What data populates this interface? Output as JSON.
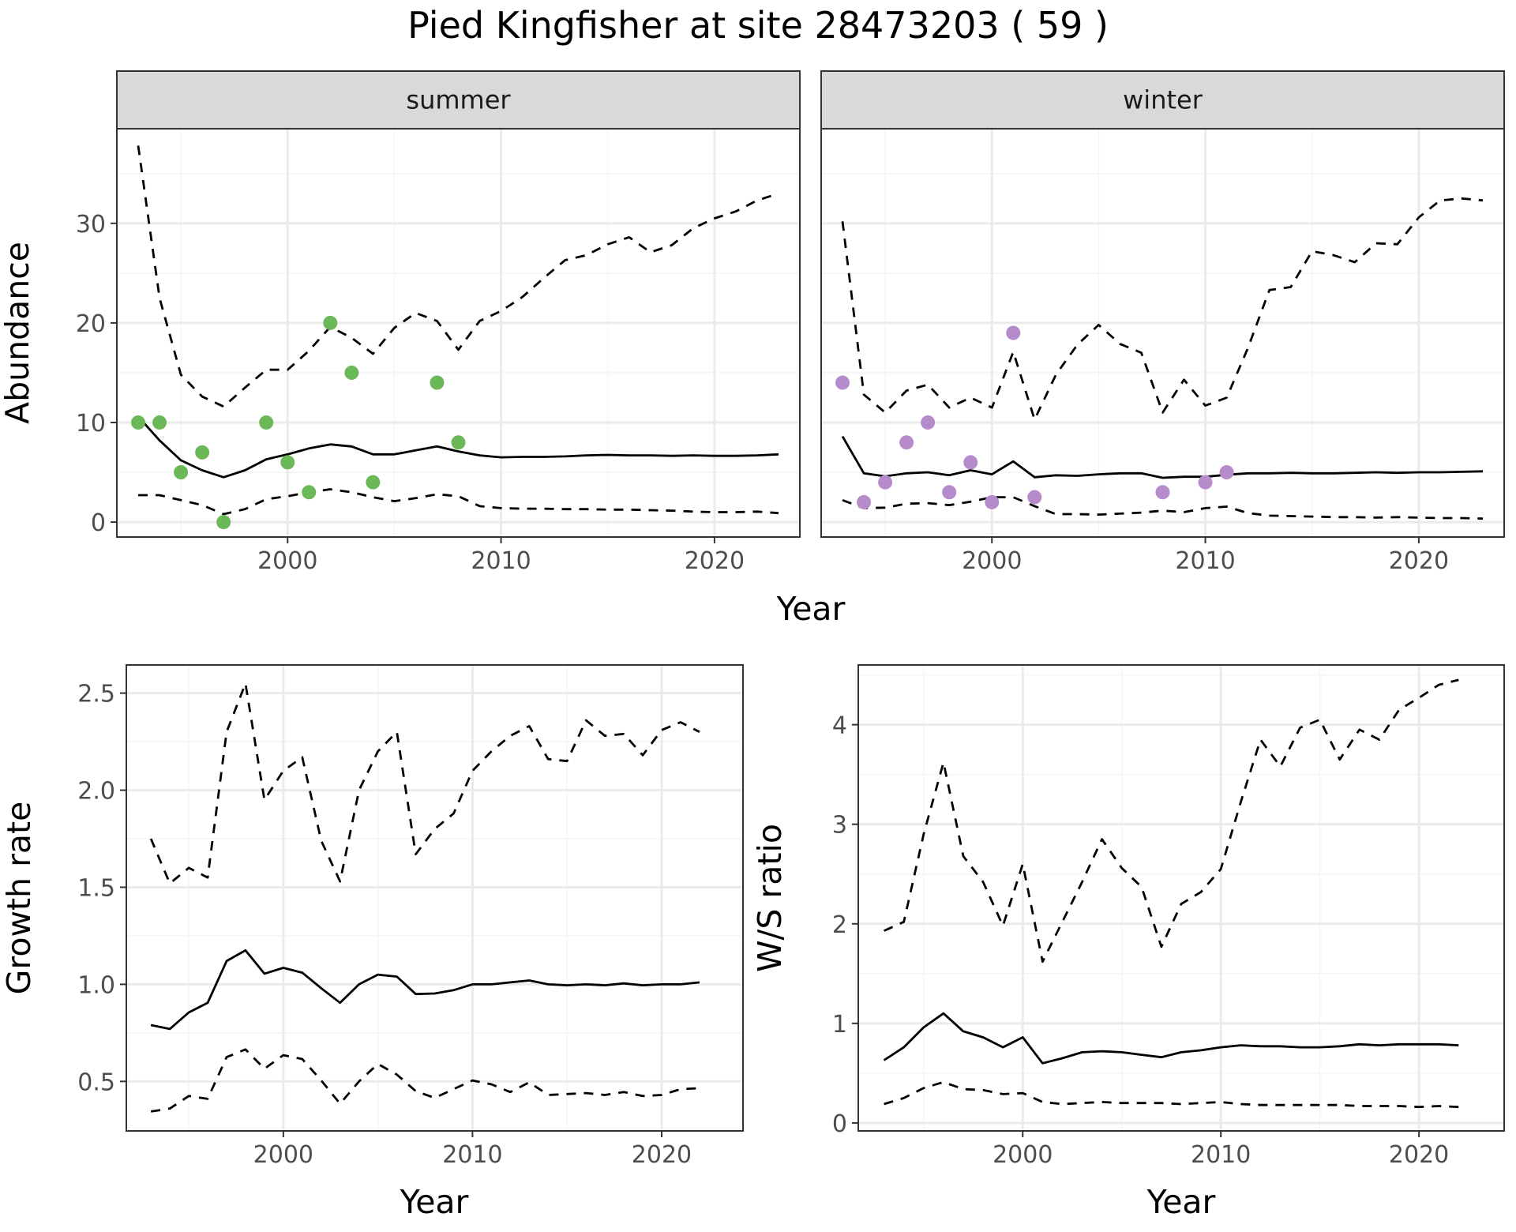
{
  "title": "Pied Kingfisher at site 28473203 ( 59 )",
  "colors": {
    "summer_points": "#6ab858",
    "winter_points": "#b68bcc",
    "line": "#000000",
    "strip_bg": "#d9d9d9",
    "grid_major": "#ebebeb",
    "grid_minor": "#f5f5f5"
  },
  "chart_data": [
    {
      "type": "line",
      "panel": "summer",
      "strip_label": "summer",
      "xlabel": "Year",
      "ylabel": "Abundance",
      "xlim": [
        1992,
        2024
      ],
      "ylim": [
        -1.5,
        39.5
      ],
      "x_ticks": [
        2000,
        2010,
        2020
      ],
      "y_ticks": [
        0,
        10,
        20,
        30
      ],
      "grid": true,
      "points": {
        "x": [
          1993,
          1994,
          1995,
          1996,
          1997,
          1999,
          2000,
          2001,
          2002,
          2003,
          2004,
          2007,
          2008
        ],
        "y": [
          10,
          10,
          5,
          7,
          0,
          10,
          6,
          3,
          20,
          15,
          4,
          14,
          8
        ]
      },
      "series": [
        {
          "style": "solid",
          "x": [
            1993,
            1994,
            1995,
            1996,
            1997,
            1998,
            1999,
            2000,
            2001,
            2002,
            2003,
            2004,
            2005,
            2006,
            2007,
            2008,
            2009,
            2010,
            2011,
            2012,
            2013,
            2014,
            2015,
            2016,
            2017,
            2018,
            2019,
            2020,
            2021,
            2022,
            2023
          ],
          "y": [
            10.6,
            8.2,
            6.2,
            5.2,
            4.5,
            5.2,
            6.3,
            6.8,
            7.4,
            7.8,
            7.6,
            6.8,
            6.8,
            7.2,
            7.6,
            7.1,
            6.7,
            6.5,
            6.55,
            6.55,
            6.6,
            6.7,
            6.75,
            6.7,
            6.7,
            6.65,
            6.7,
            6.65,
            6.65,
            6.7,
            6.8
          ]
        },
        {
          "style": "dashed",
          "x": [
            1993,
            1994,
            1995,
            1996,
            1997,
            1998,
            1999,
            2000,
            2001,
            2002,
            2003,
            2004,
            2005,
            2006,
            2007,
            2008,
            2009,
            2010,
            2011,
            2012,
            2013,
            2014,
            2015,
            2016,
            2017,
            2018,
            2019,
            2020,
            2021,
            2022,
            2023
          ],
          "y": [
            37.8,
            22.5,
            14.8,
            12.6,
            11.6,
            13.5,
            15.3,
            15.3,
            17.2,
            19.6,
            18.5,
            16.9,
            19.5,
            21.0,
            20.2,
            17.3,
            20.2,
            21.2,
            22.6,
            24.5,
            26.3,
            26.8,
            27.9,
            28.6,
            27.1,
            27.8,
            29.5,
            30.5,
            31.2,
            32.3,
            33.0
          ]
        },
        {
          "style": "dashed",
          "x": [
            1993,
            1994,
            1995,
            1996,
            1997,
            1998,
            1999,
            2000,
            2001,
            2002,
            2003,
            2004,
            2005,
            2006,
            2007,
            2008,
            2009,
            2010,
            2011,
            2012,
            2013,
            2014,
            2015,
            2016,
            2017,
            2018,
            2019,
            2020,
            2021,
            2022,
            2023
          ],
          "y": [
            2.7,
            2.7,
            2.2,
            1.7,
            0.8,
            1.3,
            2.3,
            2.6,
            3.0,
            3.3,
            3.0,
            2.5,
            2.1,
            2.4,
            2.8,
            2.6,
            1.6,
            1.4,
            1.35,
            1.35,
            1.3,
            1.3,
            1.25,
            1.25,
            1.2,
            1.15,
            1.05,
            1.0,
            1.0,
            1.05,
            0.9
          ]
        }
      ]
    },
    {
      "type": "line",
      "panel": "winter",
      "strip_label": "winter",
      "xlabel": "Year",
      "ylabel": "",
      "xlim": [
        1992,
        2024
      ],
      "ylim": [
        -1.5,
        39.5
      ],
      "x_ticks": [
        2000,
        2010,
        2020
      ],
      "y_ticks": [
        0,
        10,
        20,
        30
      ],
      "grid": true,
      "points": {
        "x": [
          1993,
          1994,
          1995,
          1996,
          1997,
          1998,
          1999,
          2000,
          2001,
          2002,
          2008,
          2010,
          2011
        ],
        "y": [
          14,
          2,
          4,
          8,
          10,
          3,
          6,
          2,
          19,
          2.5,
          3,
          4,
          5
        ]
      },
      "series": [
        {
          "style": "solid",
          "x": [
            1993,
            1994,
            1995,
            1996,
            1997,
            1998,
            1999,
            2000,
            2001,
            2002,
            2003,
            2004,
            2005,
            2006,
            2007,
            2008,
            2009,
            2010,
            2011,
            2012,
            2013,
            2014,
            2015,
            2016,
            2017,
            2018,
            2019,
            2020,
            2021,
            2022,
            2023
          ],
          "y": [
            8.6,
            4.9,
            4.6,
            4.9,
            5.0,
            4.7,
            5.2,
            4.8,
            6.1,
            4.5,
            4.7,
            4.65,
            4.8,
            4.9,
            4.9,
            4.45,
            4.55,
            4.55,
            4.75,
            4.9,
            4.9,
            4.95,
            4.9,
            4.9,
            4.95,
            5.0,
            4.95,
            5.0,
            5.0,
            5.05,
            5.1
          ]
        },
        {
          "style": "dashed",
          "x": [
            1993,
            1994,
            1995,
            1996,
            1997,
            1998,
            1999,
            2000,
            2001,
            2002,
            2003,
            2004,
            2005,
            2006,
            2007,
            2008,
            2009,
            2010,
            2011,
            2012,
            2013,
            2014,
            2015,
            2016,
            2017,
            2018,
            2019,
            2020,
            2021,
            2022,
            2023
          ],
          "y": [
            30.2,
            12.8,
            11.0,
            13.2,
            13.8,
            11.5,
            12.5,
            11.5,
            17.1,
            10.3,
            14.8,
            17.8,
            19.8,
            17.9,
            17.0,
            11.0,
            14.3,
            11.7,
            12.5,
            17.5,
            23.3,
            23.6,
            27.2,
            26.8,
            26.1,
            28.0,
            27.9,
            30.6,
            32.3,
            32.5,
            32.3
          ]
        },
        {
          "style": "dashed",
          "x": [
            1993,
            1994,
            1995,
            1996,
            1997,
            1998,
            1999,
            2000,
            2001,
            2002,
            2003,
            2004,
            2005,
            2006,
            2007,
            2008,
            2009,
            2010,
            2011,
            2012,
            2013,
            2014,
            2015,
            2016,
            2017,
            2018,
            2019,
            2020,
            2021,
            2022,
            2023
          ],
          "y": [
            2.2,
            1.4,
            1.45,
            1.85,
            1.9,
            1.7,
            2.05,
            2.5,
            2.5,
            1.6,
            0.8,
            0.8,
            0.75,
            0.85,
            0.95,
            1.15,
            1.0,
            1.4,
            1.55,
            0.9,
            0.65,
            0.6,
            0.55,
            0.5,
            0.5,
            0.45,
            0.5,
            0.45,
            0.4,
            0.4,
            0.35
          ]
        }
      ]
    },
    {
      "type": "line",
      "panel": "growth",
      "xlabel": "Year",
      "ylabel": "Growth rate",
      "xlim": [
        1991.7,
        2024.3
      ],
      "ylim": [
        0.245,
        2.645
      ],
      "x_ticks": [
        2000,
        2010,
        2020
      ],
      "y_ticks": [
        0.5,
        1.0,
        1.5,
        2.0,
        2.5
      ],
      "y_tick_labels": [
        "0.5",
        "1.0",
        "1.5",
        "2.0",
        "2.5"
      ],
      "grid": true,
      "series": [
        {
          "style": "solid",
          "x": [
            1993,
            1994,
            1995,
            1996,
            1997,
            1998,
            1999,
            2000,
            2001,
            2002,
            2003,
            2004,
            2005,
            2006,
            2007,
            2008,
            2009,
            2010,
            2011,
            2012,
            2013,
            2014,
            2015,
            2016,
            2017,
            2018,
            2019,
            2020,
            2021,
            2022
          ],
          "y": [
            0.79,
            0.77,
            0.855,
            0.905,
            1.12,
            1.175,
            1.055,
            1.085,
            1.06,
            0.98,
            0.905,
            1.0,
            1.05,
            1.04,
            0.95,
            0.953,
            0.97,
            1.0,
            1.0,
            1.01,
            1.02,
            1.0,
            0.995,
            1.0,
            0.995,
            1.005,
            0.995,
            1.0,
            1.0,
            1.01
          ]
        },
        {
          "style": "dashed",
          "x": [
            1993,
            1994,
            1995,
            1996,
            1997,
            1998,
            1999,
            2000,
            2001,
            2002,
            2003,
            2004,
            2005,
            2006,
            2007,
            2008,
            2009,
            2010,
            2011,
            2012,
            2013,
            2014,
            2015,
            2016,
            2017,
            2018,
            2019,
            2020,
            2021,
            2022
          ],
          "y": [
            1.75,
            1.52,
            1.6,
            1.55,
            2.3,
            2.55,
            1.95,
            2.1,
            2.17,
            1.74,
            1.53,
            2.0,
            2.2,
            2.3,
            1.67,
            1.8,
            1.88,
            2.1,
            2.2,
            2.28,
            2.33,
            2.16,
            2.15,
            2.36,
            2.28,
            2.29,
            2.18,
            2.31,
            2.35,
            2.3
          ]
        },
        {
          "style": "dashed",
          "x": [
            1993,
            1994,
            1995,
            1996,
            1997,
            1998,
            1999,
            2000,
            2001,
            2002,
            2003,
            2004,
            2005,
            2006,
            2007,
            2008,
            2009,
            2010,
            2011,
            2012,
            2013,
            2014,
            2015,
            2016,
            2017,
            2018,
            2019,
            2020,
            2021,
            2022
          ],
          "y": [
            0.345,
            0.36,
            0.425,
            0.41,
            0.625,
            0.665,
            0.565,
            0.635,
            0.615,
            0.505,
            0.385,
            0.5,
            0.59,
            0.535,
            0.45,
            0.415,
            0.46,
            0.505,
            0.485,
            0.445,
            0.495,
            0.43,
            0.435,
            0.44,
            0.43,
            0.445,
            0.425,
            0.43,
            0.46,
            0.465
          ]
        }
      ]
    },
    {
      "type": "line",
      "panel": "ws_ratio",
      "xlabel": "Year",
      "ylabel": "W/S ratio",
      "xlim": [
        1991.7,
        2024.3
      ],
      "ylim": [
        -0.08,
        4.6
      ],
      "x_ticks": [
        2000,
        2010,
        2020
      ],
      "y_ticks": [
        0,
        1,
        2,
        3,
        4
      ],
      "grid": true,
      "series": [
        {
          "style": "solid",
          "x": [
            1993,
            1994,
            1995,
            1996,
            1997,
            1998,
            1999,
            2000,
            2001,
            2002,
            2003,
            2004,
            2005,
            2006,
            2007,
            2008,
            2009,
            2010,
            2011,
            2012,
            2013,
            2014,
            2015,
            2016,
            2017,
            2018,
            2019,
            2020,
            2021,
            2022
          ],
          "y": [
            0.63,
            0.76,
            0.96,
            1.1,
            0.92,
            0.86,
            0.76,
            0.86,
            0.6,
            0.65,
            0.71,
            0.72,
            0.71,
            0.685,
            0.66,
            0.71,
            0.73,
            0.76,
            0.78,
            0.77,
            0.77,
            0.76,
            0.76,
            0.77,
            0.79,
            0.78,
            0.79,
            0.79,
            0.79,
            0.78
          ]
        },
        {
          "style": "dashed",
          "x": [
            1993,
            1994,
            1995,
            1996,
            1997,
            1998,
            1999,
            2000,
            2001,
            2002,
            2003,
            2004,
            2005,
            2006,
            2007,
            2008,
            2009,
            2010,
            2011,
            2012,
            2013,
            2014,
            2015,
            2016,
            2017,
            2018,
            2019,
            2020,
            2021,
            2022
          ],
          "y": [
            1.93,
            2.02,
            2.9,
            3.62,
            2.68,
            2.42,
            1.98,
            2.6,
            1.62,
            2.02,
            2.42,
            2.85,
            2.56,
            2.37,
            1.77,
            2.2,
            2.32,
            2.55,
            3.22,
            3.85,
            3.58,
            3.97,
            4.05,
            3.65,
            3.95,
            3.85,
            4.15,
            4.27,
            4.4,
            4.45
          ]
        },
        {
          "style": "dashed",
          "x": [
            1993,
            1994,
            1995,
            1996,
            1997,
            1998,
            1999,
            2000,
            2001,
            2002,
            2003,
            2004,
            2005,
            2006,
            2007,
            2008,
            2009,
            2010,
            2011,
            2012,
            2013,
            2014,
            2015,
            2016,
            2017,
            2018,
            2019,
            2020,
            2021,
            2022
          ],
          "y": [
            0.19,
            0.25,
            0.35,
            0.41,
            0.34,
            0.33,
            0.29,
            0.3,
            0.21,
            0.19,
            0.2,
            0.21,
            0.2,
            0.2,
            0.2,
            0.19,
            0.2,
            0.21,
            0.19,
            0.18,
            0.18,
            0.18,
            0.18,
            0.18,
            0.17,
            0.17,
            0.17,
            0.16,
            0.17,
            0.16
          ]
        }
      ]
    }
  ]
}
